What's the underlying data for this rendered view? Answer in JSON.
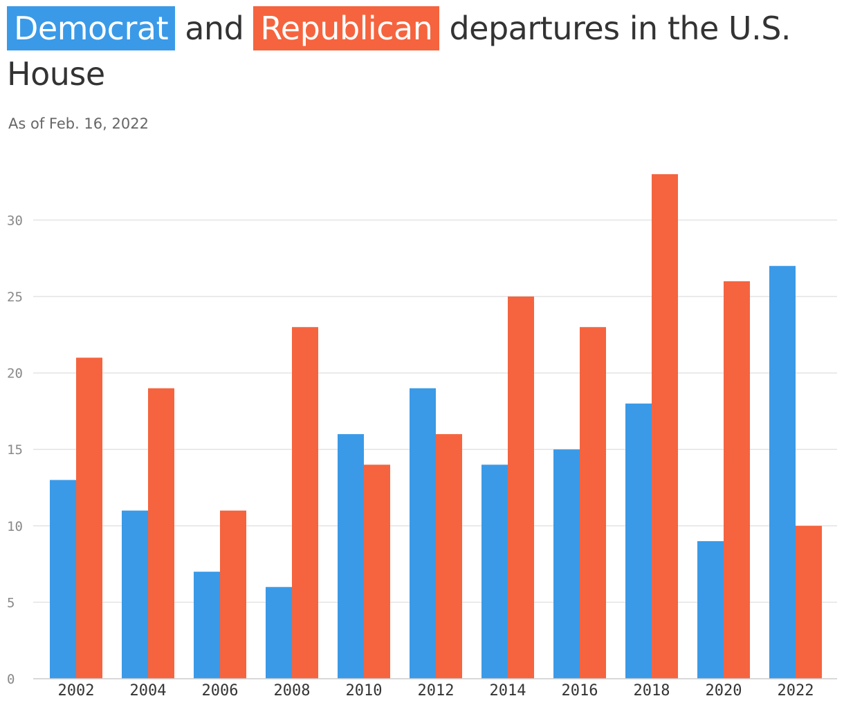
{
  "title": {
    "democrat_label": "Democrat",
    "and_text": " and ",
    "republican_label": "Republican",
    "rest": " departures in the U.S. House"
  },
  "subtitle": "As of Feb. 16, 2022",
  "colors": {
    "democrat": "#3a9ae8",
    "republican": "#f5643e",
    "grid": "#e3e3e3",
    "title_text": "#333333"
  },
  "chart_data": {
    "type": "bar",
    "categories": [
      "2002",
      "2004",
      "2006",
      "2008",
      "2010",
      "2012",
      "2014",
      "2016",
      "2018",
      "2020",
      "2022"
    ],
    "series": [
      {
        "name": "Democrat",
        "values": [
          13,
          11,
          7,
          6,
          16,
          19,
          14,
          15,
          18,
          9,
          27
        ]
      },
      {
        "name": "Republican",
        "values": [
          21,
          19,
          11,
          23,
          14,
          16,
          25,
          23,
          33,
          26,
          10
        ]
      }
    ],
    "yticks": [
      0,
      5,
      10,
      15,
      20,
      25,
      30
    ],
    "ylim": [
      0,
      33
    ],
    "grid": true,
    "xlabel": "",
    "ylabel": ""
  }
}
